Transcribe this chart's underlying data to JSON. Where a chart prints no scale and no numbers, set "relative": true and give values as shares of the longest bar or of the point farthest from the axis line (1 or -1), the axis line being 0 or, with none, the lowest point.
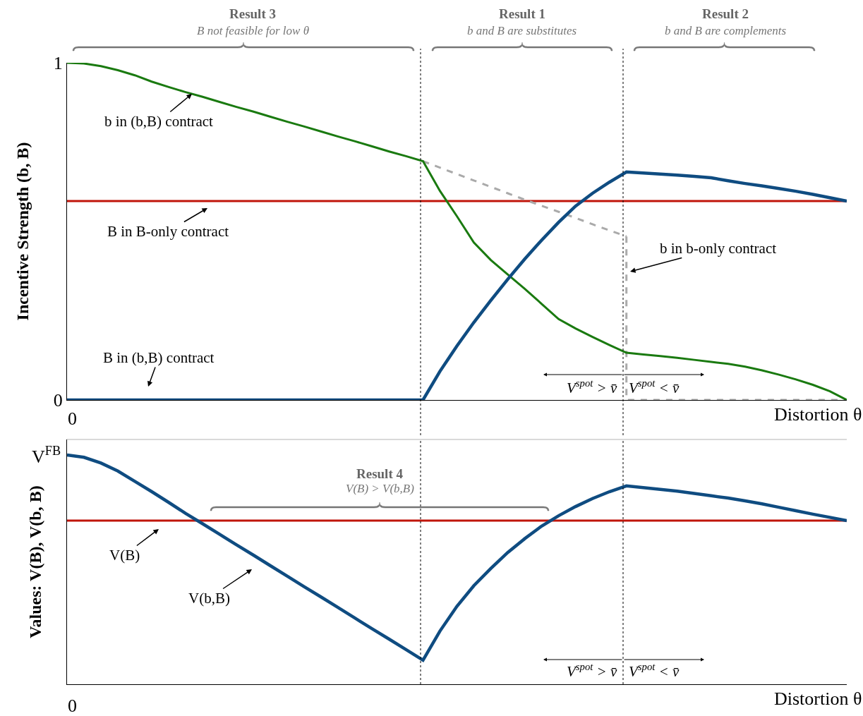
{
  "chart_data": [
    {
      "type": "line",
      "ylabel": "Incentive Strength (b, B)",
      "xlabel": "Distortion θ",
      "ylim": [
        0,
        1
      ],
      "yticks": [
        0,
        1
      ],
      "categories": [
        null,
        null,
        null,
        null,
        null,
        null,
        null,
        null,
        null,
        null,
        null,
        null,
        null,
        null,
        null,
        null,
        null,
        null,
        null,
        null,
        null,
        null,
        null,
        null,
        null,
        null,
        null,
        null,
        null,
        null,
        null,
        null,
        null,
        null,
        null,
        null,
        null,
        null,
        null,
        null,
        null,
        null,
        null,
        null,
        null,
        null,
        null
      ],
      "series": [
        {
          "color": "#c0150a",
          "values": [
            0.59,
            0.59,
            0.59,
            0.59,
            0.59,
            0.59,
            0.59,
            0.59,
            0.59,
            0.59,
            0.59,
            0.59,
            0.59,
            0.59,
            0.59,
            0.59,
            0.59,
            0.59,
            0.59,
            0.59,
            0.59,
            0.59,
            0.59,
            0.59,
            0.59,
            0.59,
            0.59,
            0.59,
            0.59,
            0.59,
            0.59,
            0.59,
            0.59,
            0.59,
            0.59,
            0.59,
            0.59,
            0.59,
            0.59,
            0.59,
            0.59,
            0.59,
            0.59,
            0.59,
            0.59,
            0.59,
            0.59
          ]
        },
        {
          "color": "#aaaaaa",
          "line_style": "dashed",
          "values": [
            null,
            null,
            null,
            null,
            null,
            null,
            null,
            null,
            null,
            null,
            null,
            null,
            null,
            null,
            null,
            null,
            null,
            null,
            null,
            null,
            null,
            0.708,
            0.689,
            0.67,
            0.651,
            0.632,
            0.613,
            0.594,
            0.576,
            0.558,
            0.54,
            0.521,
            0.503,
            0.485,
            null,
            null,
            null,
            null,
            null,
            null,
            null,
            null,
            null,
            null,
            null,
            null,
            null
          ]
        },
        {
          "color": "#aaaaaa",
          "type": "step",
          "line_style": "dashed",
          "values": [
            null,
            null,
            null,
            null,
            null,
            null,
            null,
            null,
            null,
            null,
            null,
            null,
            null,
            null,
            null,
            null,
            null,
            null,
            null,
            null,
            null,
            null,
            null,
            null,
            null,
            null,
            null,
            null,
            null,
            null,
            null,
            null,
            null,
            0.485,
            0,
            0,
            0,
            0,
            0,
            0,
            0,
            0,
            0,
            0,
            0,
            0,
            0
          ]
        },
        {
          "color": "#1a7a10",
          "values": [
            1,
            0.998,
            0.99,
            0.978,
            0.963,
            0.944,
            0.928,
            0.913,
            0.899,
            0.884,
            0.869,
            0.855,
            0.84,
            0.825,
            0.811,
            0.796,
            0.781,
            0.767,
            0.752,
            0.737,
            0.723,
            0.708,
            0.62,
            0.545,
            0.467,
            0.415,
            0.372,
            0.33,
            0.285,
            0.24,
            0.212,
            0.187,
            0.163,
            0.14,
            0.135,
            0.13,
            0.125,
            0.119,
            0.113,
            0.107,
            0.099,
            0.088,
            0.075,
            0.061,
            0.045,
            0.026,
            0
          ]
        },
        {
          "color": "#0f4c81",
          "values": [
            0,
            0,
            0,
            0,
            0,
            0,
            0,
            0,
            0,
            0,
            0,
            0,
            0,
            0,
            0,
            0,
            0,
            0,
            0,
            0,
            0,
            0,
            0.085,
            0.16,
            0.23,
            0.295,
            0.358,
            0.418,
            0.474,
            0.527,
            0.575,
            0.613,
            0.646,
            0.676,
            0.673,
            0.67,
            0.667,
            0.663,
            0.659,
            0.65,
            0.642,
            0.635,
            0.627,
            0.619,
            0.61,
            0.6,
            0.59
          ]
        }
      ],
      "annotations": [
        "b in (b,B) contract",
        "B in B-only contract",
        "B in (b,B) contract",
        "b in b-only contract",
        "Result 3",
        "B not feasible for low θ",
        "Result 1",
        "b and B are substitutes",
        "Result 2",
        "b and B are complements",
        "V$^{spot}$ > v̄",
        "V$^{spot}$ < v̄",
        "0"
      ]
    },
    {
      "type": "line",
      "ylabel": "Values: V(B), V(b, B)",
      "xlabel": "Distortion θ",
      "relative": true,
      "categories": [
        null,
        null,
        null,
        null,
        null,
        null,
        null,
        null,
        null,
        null,
        null,
        null,
        null,
        null,
        null,
        null,
        null,
        null,
        null,
        null,
        null,
        null,
        null,
        null,
        null,
        null,
        null,
        null,
        null,
        null,
        null,
        null,
        null,
        null,
        null,
        null,
        null,
        null,
        null,
        null,
        null,
        null,
        null,
        null,
        null,
        null,
        null
      ],
      "series": [
        {
          "color": "#c0150a",
          "values": [
            0.714,
            0.714,
            0.714,
            0.714,
            0.714,
            0.714,
            0.714,
            0.714,
            0.714,
            0.714,
            0.714,
            0.714,
            0.714,
            0.714,
            0.714,
            0.714,
            0.714,
            0.714,
            0.714,
            0.714,
            0.714,
            0.714,
            0.714,
            0.714,
            0.714,
            0.714,
            0.714,
            0.714,
            0.714,
            0.714,
            0.714,
            0.714,
            0.714,
            0.714,
            0.714,
            0.714,
            0.714,
            0.714,
            0.714,
            0.714,
            0.714,
            0.714,
            0.714,
            0.714,
            0.714,
            0.714,
            0.714
          ]
        },
        {
          "color": "#0f4c81",
          "values": [
            1,
            0.99,
            0.965,
            0.93,
            0.885,
            0.84,
            0.793,
            0.745,
            0.7,
            0.654,
            0.608,
            0.563,
            0.517,
            0.471,
            0.425,
            0.38,
            0.334,
            0.288,
            0.242,
            0.197,
            0.151,
            0.105,
            0.232,
            0.34,
            0.43,
            0.505,
            0.575,
            0.635,
            0.69,
            0.735,
            0.775,
            0.81,
            0.84,
            0.865,
            0.858,
            0.85,
            0.842,
            0.832,
            0.822,
            0.812,
            0.8,
            0.787,
            0.772,
            0.757,
            0.742,
            0.728,
            0.714
          ]
        }
      ],
      "annotations": [
        "V(B)",
        "V(b,B)",
        "V$^{FB}$",
        "Result 4",
        "V(B) > V(b,B)",
        "V$^{spot}$ > v̄",
        "V$^{spot}$ < v̄",
        "0"
      ]
    }
  ]
}
